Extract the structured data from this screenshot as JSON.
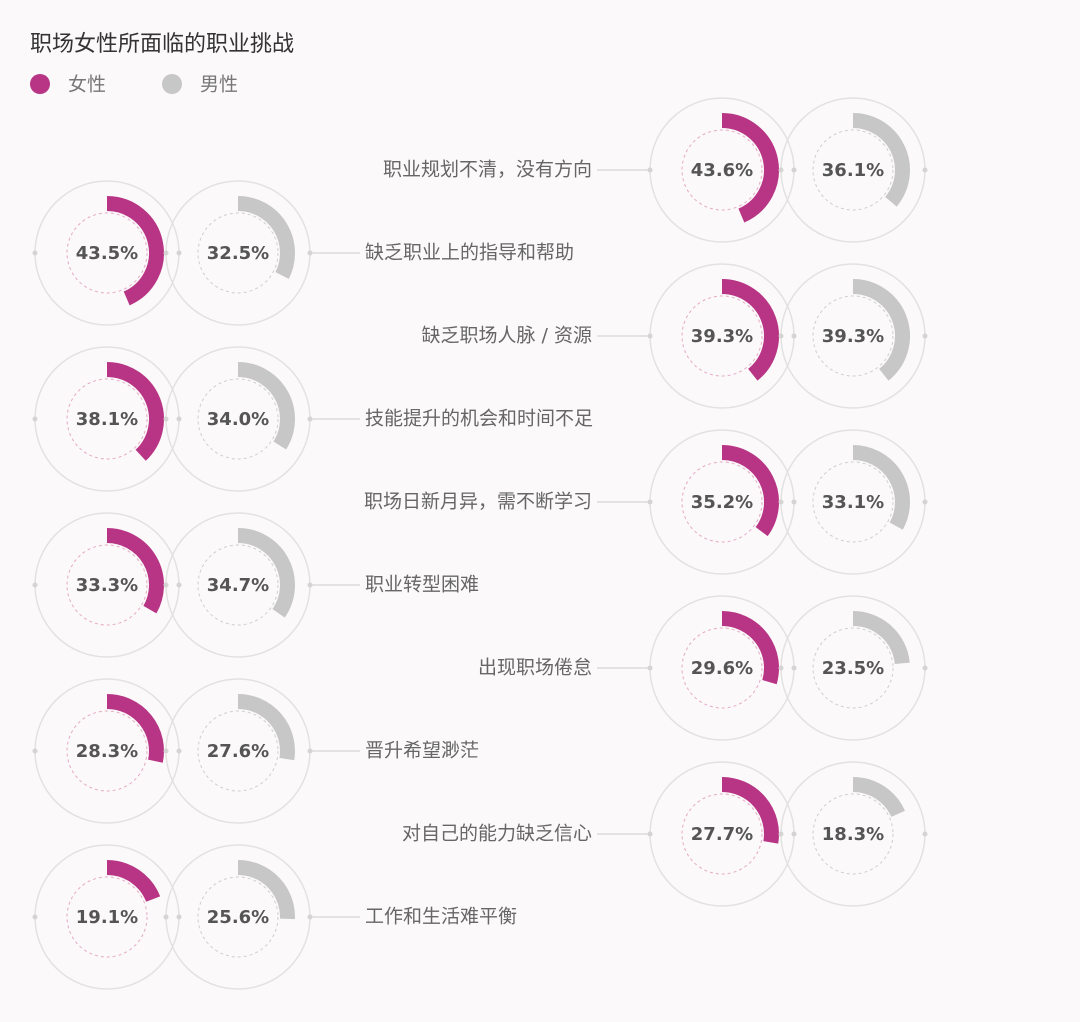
{
  "chart_data": {
    "type": "donut",
    "title": "职场女性所面临的职业挑战",
    "categories": [
      "职业规划不清，没有方向",
      "缺乏职业上的指导和帮助",
      "缺乏职场人脉 / 资源",
      "技能提升的机会和时间不足",
      "职场日新月异，需不断学习",
      "职业转型困难",
      "出现职场倦怠",
      "晋升希望渺茫",
      "对自己的能力缺乏信心",
      "工作和生活难平衡"
    ],
    "series": [
      {
        "name": "女性",
        "color": "#b83585",
        "values": [
          43.6,
          43.5,
          39.3,
          38.1,
          35.2,
          33.3,
          29.6,
          28.3,
          27.7,
          19.1
        ],
        "value_labels": [
          "43.6%",
          "43.5%",
          "39.3%",
          "38.1%",
          "35.2%",
          "33.3%",
          "29.6%",
          "28.3%",
          "27.7%",
          "19.1%"
        ]
      },
      {
        "name": "男性",
        "color": "#c8c7c8",
        "values": [
          36.1,
          32.5,
          39.3,
          34.0,
          33.1,
          34.7,
          23.5,
          27.6,
          18.3,
          25.6
        ],
        "value_labels": [
          "36.1%",
          "32.5%",
          "39.3%",
          "34.0%",
          "33.1%",
          "34.7%",
          "23.5%",
          "27.6%",
          "18.3%",
          "25.6%"
        ]
      }
    ],
    "ylim": [
      0,
      100
    ]
  }
}
